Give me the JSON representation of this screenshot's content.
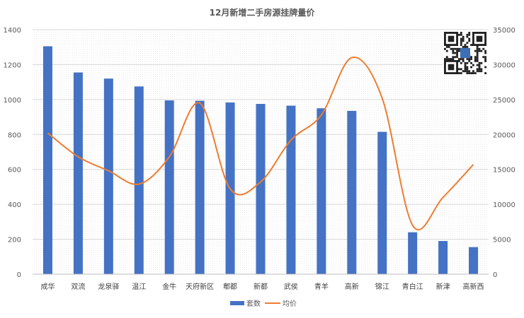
{
  "chart_data": {
    "type": "bar",
    "title": "12月新增二手房源挂牌量价",
    "categories": [
      "成华",
      "双流",
      "龙泉驿",
      "温江",
      "金牛",
      "天府新区",
      "郫都",
      "新都",
      "武侯",
      "青羊",
      "高新",
      "锦江",
      "青白江",
      "新津",
      "高新西"
    ],
    "series": [
      {
        "name": "套数",
        "type": "bar",
        "axis": "left",
        "color": "#4472C4",
        "values": [
          1305,
          1155,
          1120,
          1075,
          995,
          993,
          983,
          975,
          965,
          950,
          935,
          815,
          240,
          190,
          155
        ]
      },
      {
        "name": "均价",
        "type": "line",
        "axis": "right",
        "color": "#ED7D31",
        "values": [
          20200,
          16800,
          14800,
          12900,
          16800,
          24500,
          12200,
          13200,
          19200,
          22800,
          31000,
          25200,
          7000,
          11000,
          15700
        ]
      }
    ],
    "y_left": {
      "min": 0,
      "max": 1400,
      "ticks": [
        "0",
        "200",
        "400",
        "600",
        "800",
        "1000",
        "1200",
        "1400"
      ]
    },
    "y_right": {
      "min": 0,
      "max": 35000,
      "ticks": [
        "0",
        "5000",
        "10000",
        "15000",
        "20000",
        "25000",
        "30000",
        "35000"
      ]
    },
    "grid": true,
    "legend_position": "bottom"
  }
}
